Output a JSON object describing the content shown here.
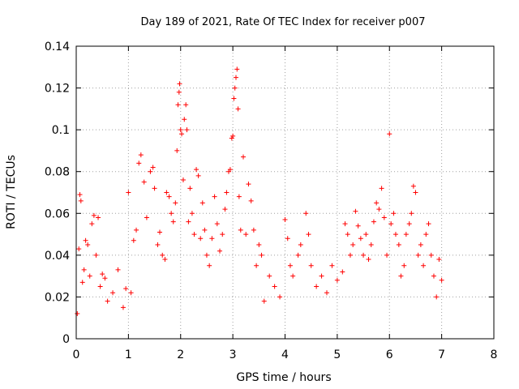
{
  "chart_data": {
    "type": "scatter",
    "title": "Day 189 of 2021, Rate Of TEC Index for receiver p007",
    "xlabel": "GPS time / hours",
    "ylabel": "ROTI / TECUs",
    "xlim": [
      0,
      8
    ],
    "ylim": [
      0,
      0.14
    ],
    "x_ticks": [
      "0",
      "1",
      "2",
      "3",
      "4",
      "5",
      "6",
      "7",
      "8"
    ],
    "y_ticks": [
      "0",
      "0.02",
      "0.04",
      "0.06",
      "0.08",
      "0.1",
      "0.12",
      "0.14"
    ],
    "grid": true,
    "marker": "plus",
    "color": "#ff0000",
    "series": [
      {
        "name": "ROTI",
        "points": [
          [
            0.02,
            0.012
          ],
          [
            0.05,
            0.043
          ],
          [
            0.07,
            0.069
          ],
          [
            0.09,
            0.066
          ],
          [
            0.12,
            0.027
          ],
          [
            0.15,
            0.033
          ],
          [
            0.18,
            0.047
          ],
          [
            0.22,
            0.045
          ],
          [
            0.26,
            0.03
          ],
          [
            0.3,
            0.055
          ],
          [
            0.34,
            0.059
          ],
          [
            0.38,
            0.04
          ],
          [
            0.42,
            0.058
          ],
          [
            0.46,
            0.025
          ],
          [
            0.5,
            0.031
          ],
          [
            0.55,
            0.029
          ],
          [
            0.6,
            0.018
          ],
          [
            0.7,
            0.022
          ],
          [
            0.8,
            0.033
          ],
          [
            0.9,
            0.015
          ],
          [
            0.95,
            0.024
          ],
          [
            1.0,
            0.07
          ],
          [
            1.05,
            0.022
          ],
          [
            1.1,
            0.047
          ],
          [
            1.15,
            0.052
          ],
          [
            1.2,
            0.084
          ],
          [
            1.24,
            0.088
          ],
          [
            1.3,
            0.075
          ],
          [
            1.35,
            0.058
          ],
          [
            1.42,
            0.08
          ],
          [
            1.47,
            0.082
          ],
          [
            1.5,
            0.072
          ],
          [
            1.56,
            0.045
          ],
          [
            1.6,
            0.051
          ],
          [
            1.65,
            0.04
          ],
          [
            1.7,
            0.038
          ],
          [
            1.73,
            0.07
          ],
          [
            1.78,
            0.068
          ],
          [
            1.82,
            0.06
          ],
          [
            1.86,
            0.056
          ],
          [
            1.9,
            0.065
          ],
          [
            1.93,
            0.09
          ],
          [
            1.95,
            0.112
          ],
          [
            1.97,
            0.118
          ],
          [
            1.98,
            0.122
          ],
          [
            2.0,
            0.1
          ],
          [
            2.02,
            0.098
          ],
          [
            2.05,
            0.076
          ],
          [
            2.07,
            0.105
          ],
          [
            2.1,
            0.112
          ],
          [
            2.12,
            0.1
          ],
          [
            2.15,
            0.056
          ],
          [
            2.18,
            0.072
          ],
          [
            2.22,
            0.06
          ],
          [
            2.26,
            0.05
          ],
          [
            2.3,
            0.081
          ],
          [
            2.34,
            0.078
          ],
          [
            2.38,
            0.048
          ],
          [
            2.42,
            0.065
          ],
          [
            2.46,
            0.052
          ],
          [
            2.5,
            0.04
          ],
          [
            2.55,
            0.035
          ],
          [
            2.6,
            0.048
          ],
          [
            2.65,
            0.068
          ],
          [
            2.7,
            0.055
          ],
          [
            2.75,
            0.042
          ],
          [
            2.8,
            0.05
          ],
          [
            2.85,
            0.062
          ],
          [
            2.88,
            0.07
          ],
          [
            2.92,
            0.08
          ],
          [
            2.95,
            0.081
          ],
          [
            2.98,
            0.096
          ],
          [
            3.0,
            0.097
          ],
          [
            3.02,
            0.115
          ],
          [
            3.04,
            0.12
          ],
          [
            3.06,
            0.125
          ],
          [
            3.08,
            0.129
          ],
          [
            3.1,
            0.11
          ],
          [
            3.12,
            0.068
          ],
          [
            3.15,
            0.052
          ],
          [
            3.2,
            0.087
          ],
          [
            3.25,
            0.05
          ],
          [
            3.3,
            0.074
          ],
          [
            3.35,
            0.066
          ],
          [
            3.4,
            0.052
          ],
          [
            3.45,
            0.035
          ],
          [
            3.5,
            0.045
          ],
          [
            3.55,
            0.04
          ],
          [
            3.6,
            0.018
          ],
          [
            3.7,
            0.03
          ],
          [
            3.8,
            0.025
          ],
          [
            3.9,
            0.02
          ],
          [
            4.0,
            0.057
          ],
          [
            4.05,
            0.048
          ],
          [
            4.1,
            0.035
          ],
          [
            4.15,
            0.03
          ],
          [
            4.25,
            0.04
          ],
          [
            4.3,
            0.045
          ],
          [
            4.4,
            0.06
          ],
          [
            4.45,
            0.05
          ],
          [
            4.5,
            0.035
          ],
          [
            4.6,
            0.025
          ],
          [
            4.7,
            0.03
          ],
          [
            4.8,
            0.022
          ],
          [
            4.9,
            0.035
          ],
          [
            5.0,
            0.028
          ],
          [
            5.1,
            0.032
          ],
          [
            5.15,
            0.055
          ],
          [
            5.2,
            0.05
          ],
          [
            5.25,
            0.04
          ],
          [
            5.3,
            0.045
          ],
          [
            5.35,
            0.061
          ],
          [
            5.4,
            0.054
          ],
          [
            5.45,
            0.048
          ],
          [
            5.5,
            0.04
          ],
          [
            5.55,
            0.05
          ],
          [
            5.6,
            0.038
          ],
          [
            5.65,
            0.045
          ],
          [
            5.7,
            0.056
          ],
          [
            5.75,
            0.065
          ],
          [
            5.8,
            0.062
          ],
          [
            5.85,
            0.072
          ],
          [
            5.9,
            0.058
          ],
          [
            5.95,
            0.04
          ],
          [
            6.0,
            0.098
          ],
          [
            6.03,
            0.055
          ],
          [
            6.08,
            0.06
          ],
          [
            6.12,
            0.05
          ],
          [
            6.18,
            0.045
          ],
          [
            6.22,
            0.03
          ],
          [
            6.28,
            0.035
          ],
          [
            6.32,
            0.05
          ],
          [
            6.38,
            0.055
          ],
          [
            6.42,
            0.06
          ],
          [
            6.46,
            0.073
          ],
          [
            6.5,
            0.07
          ],
          [
            6.55,
            0.04
          ],
          [
            6.6,
            0.045
          ],
          [
            6.65,
            0.035
          ],
          [
            6.7,
            0.05
          ],
          [
            6.75,
            0.055
          ],
          [
            6.8,
            0.04
          ],
          [
            6.85,
            0.03
          ],
          [
            6.9,
            0.02
          ],
          [
            6.95,
            0.038
          ],
          [
            7.0,
            0.028
          ]
        ]
      }
    ]
  }
}
